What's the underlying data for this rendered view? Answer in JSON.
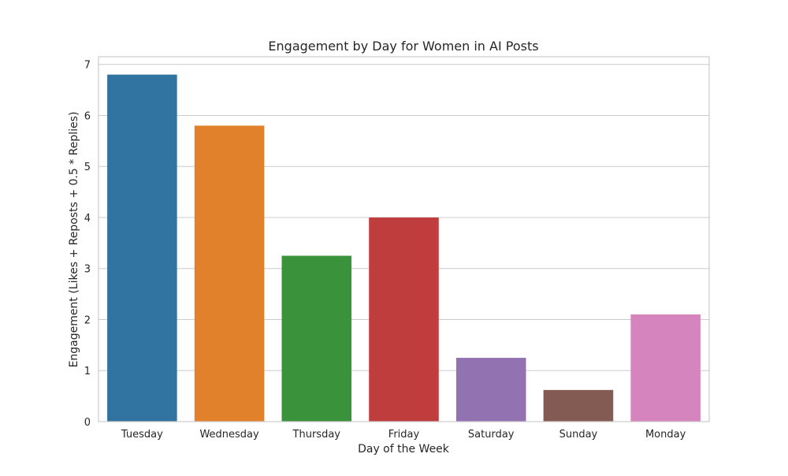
{
  "chart_data": {
    "type": "bar",
    "title": "Engagement by Day for Women in AI Posts",
    "xlabel": "Day of the Week",
    "ylabel": "Engagement (Likes + Reposts + 0.5 * Replies)",
    "categories": [
      "Tuesday",
      "Wednesday",
      "Thursday",
      "Friday",
      "Saturday",
      "Sunday",
      "Monday"
    ],
    "values": [
      6.8,
      5.8,
      3.25,
      4.0,
      1.25,
      0.62,
      2.1
    ],
    "colors": [
      "#3274a1",
      "#e1812c",
      "#3a923a",
      "#c03d3e",
      "#9372b2",
      "#845b53",
      "#d684bd"
    ],
    "ylim": [
      0,
      7.0
    ],
    "yticks": [
      0,
      1,
      2,
      3,
      4,
      5,
      6,
      7
    ],
    "grid": true,
    "legend": "none"
  }
}
